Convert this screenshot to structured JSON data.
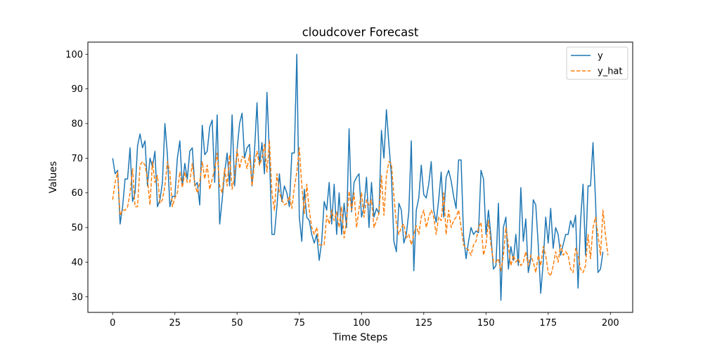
{
  "chart_data": {
    "type": "line",
    "title": "cloudcover Forecast",
    "xlabel": "Time Steps",
    "ylabel": "Values",
    "xlim": [
      -9.95,
      208.95
    ],
    "ylim": [
      25.5,
      103.5
    ],
    "xticks": [
      0,
      25,
      50,
      75,
      100,
      125,
      150,
      175,
      200
    ],
    "yticks": [
      30,
      40,
      50,
      60,
      70,
      80,
      90,
      100
    ],
    "grid": false,
    "legend_position": "top-right",
    "series": [
      {
        "name": "y",
        "color": "#1f77b4",
        "style": "solid",
        "values": [
          70,
          65.5,
          66.5,
          51,
          56,
          64,
          64,
          73,
          57.5,
          60,
          73.5,
          77,
          73,
          75,
          62,
          70,
          67.5,
          72,
          56,
          58,
          63,
          80,
          71,
          56,
          59,
          59,
          70,
          75,
          62,
          68.5,
          64,
          72,
          73,
          62,
          63,
          56.5,
          79.5,
          71,
          72,
          79,
          81,
          63,
          82.5,
          51,
          58,
          66,
          71.5,
          62,
          82.5,
          62,
          72.5,
          80,
          83,
          70,
          73,
          74,
          62,
          72,
          86,
          68,
          74.5,
          65.5,
          89,
          71,
          48,
          48,
          56,
          65.5,
          57.5,
          62,
          60,
          56,
          71.5,
          71.5,
          100,
          53,
          46,
          61,
          53,
          52,
          48,
          45.5,
          48,
          40.5,
          46,
          57.5,
          55,
          63,
          51,
          62.5,
          48,
          60,
          48,
          57,
          50,
          78.5,
          54.5,
          63,
          64.5,
          65.5,
          53,
          56,
          64.5,
          50,
          63,
          53,
          55.5,
          54,
          78,
          70,
          84,
          74,
          65,
          46,
          43,
          57,
          55,
          45.5,
          48,
          54.5,
          75,
          37.5,
          55,
          58.5,
          68,
          59.5,
          58.5,
          62.5,
          69,
          55,
          51.5,
          58,
          66,
          53,
          64.5,
          66.5,
          63.5,
          59,
          55.5,
          69.5,
          69.5,
          47.5,
          41,
          46,
          50,
          48,
          49,
          48.5,
          66.5,
          64,
          48,
          55,
          47.5,
          38,
          39,
          57,
          29,
          50,
          53,
          38,
          44.5,
          40.5,
          48,
          39,
          61.5,
          46,
          52.5,
          37,
          41,
          58,
          56.5,
          45,
          31,
          40,
          53,
          45.5,
          55.5,
          44,
          50,
          48,
          42,
          45,
          48,
          48,
          52,
          50,
          53.5,
          32.5,
          52,
          62.5,
          42,
          62,
          62,
          74.5,
          58,
          37,
          38,
          43
        ]
      },
      {
        "name": "y_hat",
        "color": "#ff7f0e",
        "style": "dashed",
        "values": [
          58,
          63,
          66,
          53.5,
          55,
          55,
          56,
          60,
          67,
          56,
          56,
          68,
          69,
          68,
          64,
          56.5,
          69,
          63,
          65,
          57,
          58,
          62,
          69,
          66,
          56,
          58.5,
          60,
          66,
          61.5,
          66,
          63,
          63,
          68.5,
          62.5,
          60,
          63,
          69,
          64,
          68,
          61,
          64,
          67,
          71.5,
          62,
          60,
          67,
          62,
          71,
          61,
          65,
          72.5,
          67,
          70.5,
          70,
          67,
          71,
          62,
          68.5,
          72,
          68,
          70,
          74,
          66,
          75,
          60,
          55,
          65.5,
          60,
          58,
          56.5,
          57,
          59,
          55.5,
          61.5,
          66,
          73,
          62,
          54,
          62.5,
          55,
          50,
          48,
          50,
          45,
          45,
          45,
          53.5,
          51,
          55,
          52,
          54.5,
          50,
          56,
          47,
          52,
          60.5,
          55,
          60,
          50,
          55.5,
          60,
          53,
          58,
          56.5,
          58,
          50,
          52,
          54,
          65,
          53.5,
          65,
          69,
          68.5,
          59,
          51,
          48,
          50,
          51,
          47,
          48,
          45,
          48,
          50.5,
          48,
          53,
          55,
          50,
          53,
          55,
          53,
          48,
          53,
          52,
          60,
          48,
          55,
          50,
          52,
          53,
          55,
          50,
          45,
          44,
          43.5,
          42,
          45,
          46,
          50,
          51.5,
          42,
          45,
          52,
          45,
          40,
          40,
          41,
          37.5,
          42,
          50,
          45,
          39,
          42,
          40,
          41,
          39,
          40,
          43,
          39,
          42,
          40,
          37,
          42,
          39,
          44.5,
          42,
          37,
          36,
          39,
          43,
          40,
          45,
          42,
          43,
          42,
          38,
          37,
          44,
          42,
          38,
          37,
          39,
          48,
          41,
          50,
          53,
          48,
          42,
          55,
          48,
          42
        ]
      }
    ]
  }
}
